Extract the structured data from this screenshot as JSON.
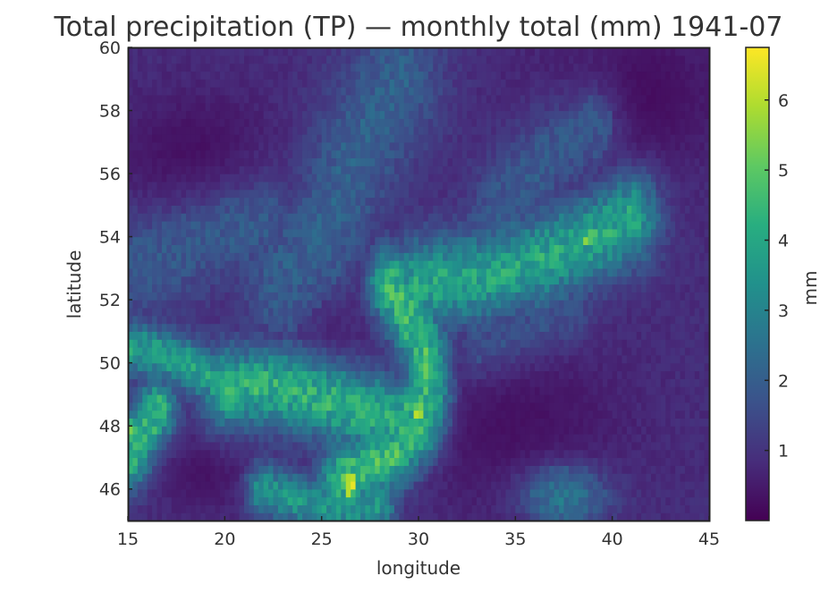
{
  "chart_data": {
    "type": "heatmap",
    "title": "Total precipitation (TP) — monthly total (mm) 1941-07",
    "xlabel": "longitude",
    "ylabel": "latitude",
    "xlim": [
      15,
      45
    ],
    "ylim": [
      45,
      60
    ],
    "x_ticks": [
      "15",
      "20",
      "25",
      "30",
      "35",
      "40",
      "45"
    ],
    "y_ticks": [
      "46",
      "48",
      "50",
      "52",
      "54",
      "56",
      "58",
      "60"
    ],
    "colorbar": {
      "label": "mm",
      "range": [
        0,
        6.75
      ],
      "ticks": [
        "1",
        "2",
        "3",
        "4",
        "5",
        "6"
      ],
      "colormap": "viridis"
    },
    "grid": false,
    "features": [
      {
        "kind": "band",
        "points": [
          [
            20,
            49.2
          ],
          [
            22.5,
            49.3
          ],
          [
            25,
            48.9
          ],
          [
            27,
            48.5
          ],
          [
            29,
            48.2
          ],
          [
            30,
            48.5
          ]
        ],
        "value": 4.2,
        "width": 0.9
      },
      {
        "kind": "band",
        "points": [
          [
            26,
            46.3
          ],
          [
            27,
            46.6
          ],
          [
            28.5,
            47.0
          ],
          [
            30,
            48.0
          ],
          [
            30.5,
            49.0
          ],
          [
            30.3,
            50.5
          ],
          [
            29.5,
            51.5
          ],
          [
            28.5,
            52.5
          ]
        ],
        "value": 4.5,
        "width": 0.8
      },
      {
        "kind": "band",
        "points": [
          [
            30,
            52.5
          ],
          [
            33,
            52.7
          ],
          [
            36,
            53.2
          ],
          [
            38.5,
            53.8
          ],
          [
            41,
            54.6
          ]
        ],
        "value": 3.9,
        "width": 1.0
      },
      {
        "kind": "band",
        "points": [
          [
            15,
            50.5
          ],
          [
            16.5,
            50.3
          ],
          [
            18,
            50.0
          ],
          [
            19.5,
            49.5
          ]
        ],
        "value": 3.8,
        "width": 0.6
      },
      {
        "kind": "band",
        "points": [
          [
            15,
            47.0
          ],
          [
            15.8,
            47.8
          ],
          [
            16.5,
            48.5
          ]
        ],
        "value": 4.4,
        "width": 0.7
      },
      {
        "kind": "band",
        "points": [
          [
            22,
            46.0
          ],
          [
            24,
            45.6
          ],
          [
            26,
            45.4
          ],
          [
            28,
            45.5
          ]
        ],
        "value": 3.5,
        "width": 0.6
      },
      {
        "kind": "band",
        "points": [
          [
            23,
            52.5
          ],
          [
            25,
            53.8
          ],
          [
            26,
            55.5
          ],
          [
            27.5,
            57.5
          ],
          [
            29,
            59.0
          ]
        ],
        "value": 2.1,
        "width": 1.6
      },
      {
        "kind": "band",
        "points": [
          [
            31,
            51.5
          ],
          [
            33,
            53.0
          ],
          [
            34.5,
            55.0
          ],
          [
            36.5,
            56.5
          ],
          [
            39,
            57.5
          ]
        ],
        "value": 1.9,
        "width": 1.2
      },
      {
        "kind": "band",
        "points": [
          [
            15,
            53.0
          ],
          [
            17,
            53.5
          ],
          [
            19,
            54.0
          ],
          [
            22,
            54.5
          ]
        ],
        "value": 1.9,
        "width": 1.2
      },
      {
        "kind": "band",
        "points": [
          [
            33,
            50.5
          ],
          [
            35.5,
            51.0
          ],
          [
            38,
            51.8
          ]
        ],
        "value": 1.7,
        "width": 0.8
      },
      {
        "kind": "blob",
        "center": [
          37.5,
          45.8
        ],
        "value": 2.8,
        "radius": [
          1.6,
          0.7
        ]
      },
      {
        "kind": "blob",
        "center": [
          26.5,
          46.2
        ],
        "value": 6.5,
        "radius": [
          0.3,
          0.5
        ]
      },
      {
        "kind": "blob",
        "center": [
          30.0,
          48.5
        ],
        "value": 5.8,
        "radius": [
          0.4,
          0.3
        ]
      },
      {
        "kind": "blob",
        "center": [
          38.8,
          54.0
        ],
        "value": 4.9,
        "radius": [
          0.9,
          0.4
        ]
      },
      {
        "kind": "blob",
        "center": [
          15.2,
          47.8
        ],
        "value": 5.2,
        "radius": [
          0.4,
          0.4
        ]
      },
      {
        "kind": "blob",
        "center": [
          24.5,
          51.8
        ],
        "value": 0.3,
        "radius": [
          2.0,
          1.2
        ]
      },
      {
        "kind": "blob",
        "center": [
          35.0,
          48.0
        ],
        "value": 0.3,
        "radius": [
          4.0,
          2.0
        ]
      },
      {
        "kind": "blob",
        "center": [
          41.0,
          58.5
        ],
        "value": 0.2,
        "radius": [
          3.5,
          1.8
        ]
      },
      {
        "kind": "blob",
        "center": [
          18.5,
          56.5
        ],
        "value": 0.25,
        "radius": [
          3.0,
          1.5
        ]
      },
      {
        "kind": "blob",
        "center": [
          19.0,
          46.5
        ],
        "value": 0.35,
        "radius": [
          1.6,
          0.9
        ]
      }
    ],
    "background_value": 0.85
  }
}
